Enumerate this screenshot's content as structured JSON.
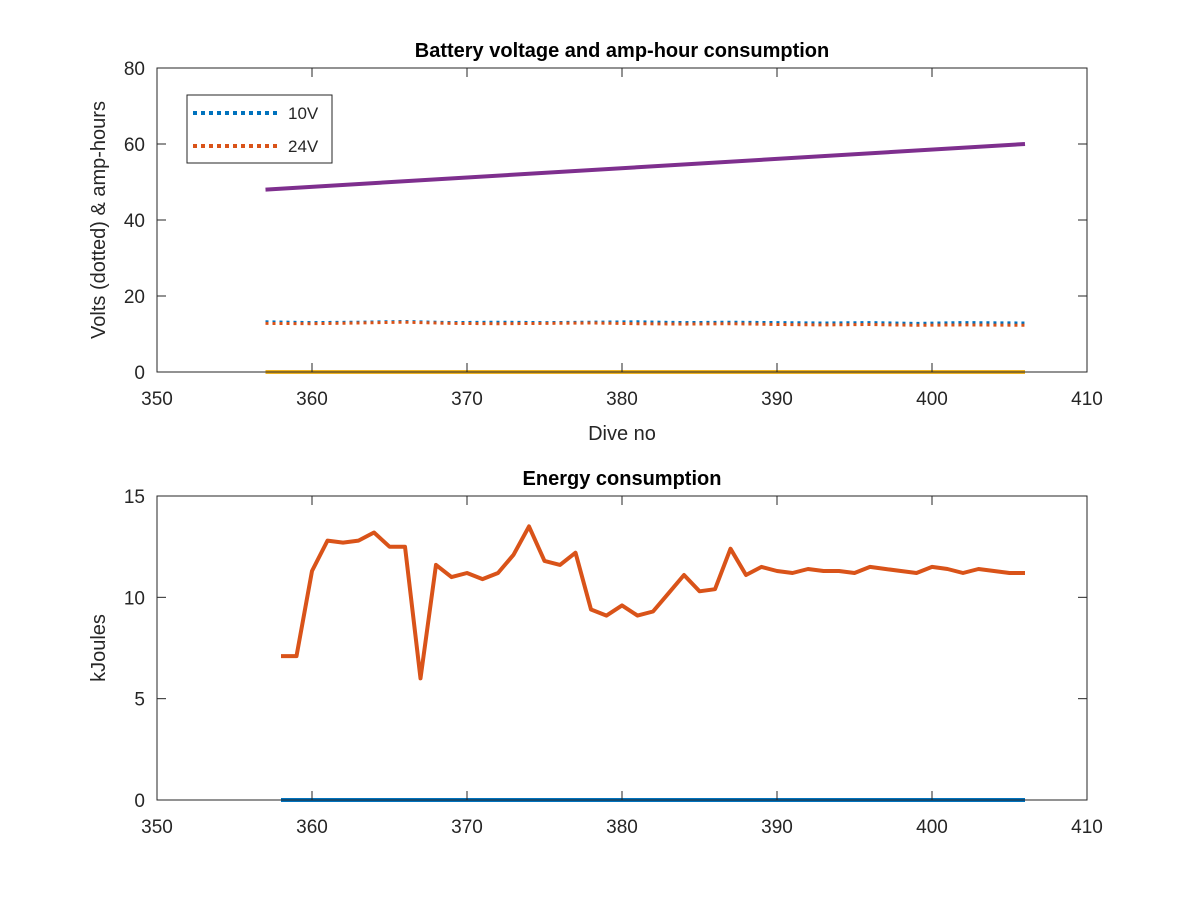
{
  "chart_data": [
    {
      "type": "line",
      "title": "Battery voltage and amp-hour consumption",
      "xlabel": "Dive no",
      "ylabel": "Volts (dotted) & amp-hours",
      "xlim": [
        350,
        410
      ],
      "ylim": [
        0,
        80
      ],
      "xticks": [
        "350",
        "360",
        "370",
        "380",
        "390",
        "400",
        "410"
      ],
      "yticks": [
        "0",
        "20",
        "40",
        "60",
        "80"
      ],
      "grid": false,
      "legend_position": "top-left",
      "series": [
        {
          "name": "10V",
          "style": "dotted",
          "color": "#0072BD",
          "x": [
            357,
            360,
            363,
            366,
            369,
            372,
            375,
            378,
            381,
            384,
            387,
            390,
            393,
            396,
            399,
            402,
            406
          ],
          "y": [
            13.2,
            13.0,
            13.1,
            13.3,
            13.0,
            13.1,
            13.0,
            13.1,
            13.2,
            13.0,
            13.1,
            13.0,
            12.9,
            13.0,
            12.8,
            13.0,
            12.9
          ]
        },
        {
          "name": "24V",
          "style": "dotted",
          "color": "#D95319",
          "x": [
            357,
            360,
            363,
            366,
            369,
            372,
            375,
            378,
            381,
            384,
            387,
            390,
            393,
            396,
            399,
            402,
            406
          ],
          "y": [
            12.8,
            12.7,
            12.9,
            13.1,
            12.8,
            12.7,
            12.8,
            12.9,
            12.7,
            12.6,
            12.7,
            12.5,
            12.4,
            12.5,
            12.3,
            12.4,
            12.3
          ]
        },
        {
          "style": "solid",
          "color": "#EDB120",
          "x": [
            357,
            406
          ],
          "y": [
            0,
            0
          ]
        },
        {
          "style": "solid",
          "color": "#7E2F8E",
          "x": [
            357,
            406
          ],
          "y": [
            48,
            60
          ]
        }
      ]
    },
    {
      "type": "line",
      "title": "Energy consumption",
      "xlabel": "",
      "ylabel": "kJoules",
      "xlim": [
        350,
        410
      ],
      "ylim": [
        0,
        15
      ],
      "xticks": [
        "350",
        "360",
        "370",
        "380",
        "390",
        "400",
        "410"
      ],
      "yticks": [
        "0",
        "5",
        "10",
        "15"
      ],
      "grid": false,
      "series": [
        {
          "style": "solid",
          "color": "#D95319",
          "x": [
            358,
            359,
            360,
            361,
            362,
            363,
            364,
            365,
            366,
            367,
            368,
            369,
            370,
            371,
            372,
            373,
            374,
            375,
            376,
            377,
            378,
            379,
            380,
            381,
            382,
            383,
            384,
            385,
            386,
            387,
            388,
            389,
            390,
            391,
            392,
            393,
            394,
            395,
            396,
            397,
            398,
            399,
            400,
            401,
            402,
            403,
            404,
            405,
            406
          ],
          "y": [
            7.1,
            7.1,
            11.3,
            12.8,
            12.7,
            12.8,
            13.2,
            12.5,
            12.5,
            6.0,
            11.6,
            11.0,
            11.2,
            10.9,
            11.2,
            12.1,
            13.5,
            11.8,
            11.6,
            12.2,
            9.4,
            9.1,
            9.6,
            9.1,
            9.3,
            10.2,
            11.1,
            10.3,
            10.4,
            12.4,
            11.1,
            11.5,
            11.3,
            11.2,
            11.4,
            11.3,
            11.3,
            11.2,
            11.5,
            11.4,
            11.3,
            11.2,
            11.5,
            11.4,
            11.2,
            11.4,
            11.3,
            11.2,
            11.2
          ]
        },
        {
          "style": "solid",
          "color": "#0072BD",
          "x": [
            358,
            406
          ],
          "y": [
            0,
            0
          ]
        }
      ]
    }
  ]
}
